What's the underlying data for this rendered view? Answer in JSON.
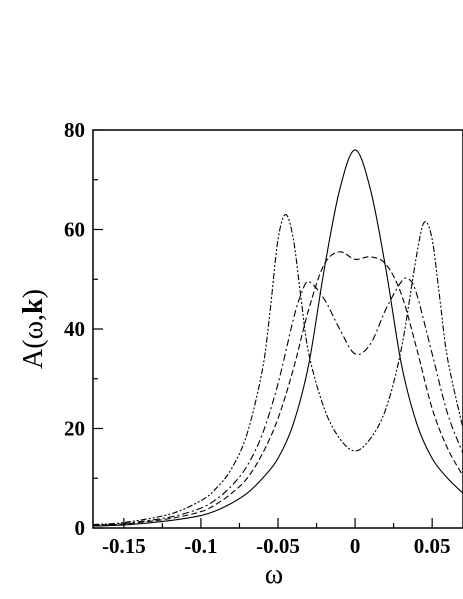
{
  "chart_data": {
    "type": "line",
    "title": "",
    "xlabel": "ω",
    "ylabel_prefix": "A(ω,",
    "ylabel_bold": "k",
    "ylabel_suffix": ")",
    "xlim": [
      -0.17,
      0.07
    ],
    "ylim": [
      0,
      80
    ],
    "x_ticks": [
      -0.15,
      -0.1,
      -0.05,
      0,
      0.05
    ],
    "x_tick_labels": [
      "-0.15",
      "-0.1",
      "-0.05",
      "0",
      "0.05"
    ],
    "y_ticks": [
      0,
      20,
      40,
      60,
      80
    ],
    "y_tick_labels": [
      "0",
      "20",
      "40",
      "60",
      "80"
    ],
    "grid": false,
    "legend": "none",
    "series": [
      {
        "style": "solid",
        "color": "#000000",
        "x": [
          -0.17,
          -0.15,
          -0.12,
          -0.1,
          -0.09,
          -0.08,
          -0.07,
          -0.06,
          -0.05,
          -0.04,
          -0.03,
          -0.02,
          -0.01,
          0,
          0.01,
          0.02,
          0.03,
          0.04,
          0.05,
          0.06,
          0.07
        ],
        "y": [
          0.4,
          0.6,
          1.5,
          2.5,
          3.5,
          5,
          7,
          10,
          14,
          21,
          33,
          52,
          68,
          76,
          68,
          52,
          33,
          21,
          14,
          10,
          7
        ]
      },
      {
        "style": "dashed",
        "color": "#000000",
        "x": [
          -0.17,
          -0.15,
          -0.12,
          -0.1,
          -0.09,
          -0.08,
          -0.07,
          -0.06,
          -0.05,
          -0.04,
          -0.03,
          -0.02,
          -0.01,
          0,
          0.01,
          0.02,
          0.03,
          0.04,
          0.05,
          0.06,
          0.07
        ],
        "y": [
          0.5,
          0.8,
          1.9,
          3.3,
          4.8,
          7,
          10,
          15,
          22,
          32,
          44,
          53,
          55.5,
          54,
          54.5,
          53,
          47,
          36,
          24,
          16,
          10.5
        ]
      },
      {
        "style": "dashdot",
        "color": "#000000",
        "x": [
          -0.17,
          -0.15,
          -0.12,
          -0.1,
          -0.09,
          -0.08,
          -0.07,
          -0.06,
          -0.05,
          -0.04,
          -0.035,
          -0.03,
          -0.02,
          -0.01,
          0,
          0.01,
          0.02,
          0.03,
          0.035,
          0.04,
          0.05,
          0.06,
          0.07
        ],
        "y": [
          0.6,
          0.9,
          2.2,
          4,
          5.8,
          8.5,
          12.5,
          19,
          29,
          42,
          47,
          49.5,
          46,
          40,
          35,
          37,
          44,
          49.5,
          50,
          47,
          35,
          23,
          15
        ]
      },
      {
        "style": "dashdotdot",
        "color": "#000000",
        "x": [
          -0.17,
          -0.15,
          -0.12,
          -0.1,
          -0.09,
          -0.08,
          -0.07,
          -0.06,
          -0.055,
          -0.05,
          -0.045,
          -0.04,
          -0.035,
          -0.03,
          -0.02,
          -0.01,
          0,
          0.01,
          0.02,
          0.03,
          0.04,
          0.045,
          0.05,
          0.055,
          0.06,
          0.07
        ],
        "y": [
          0.7,
          1.1,
          2.8,
          5.5,
          8,
          12,
          19,
          32,
          44,
          58,
          63,
          58,
          46,
          35,
          24,
          18,
          15.5,
          18,
          24,
          36,
          55,
          61.5,
          58,
          46,
          34,
          20
        ]
      }
    ]
  }
}
